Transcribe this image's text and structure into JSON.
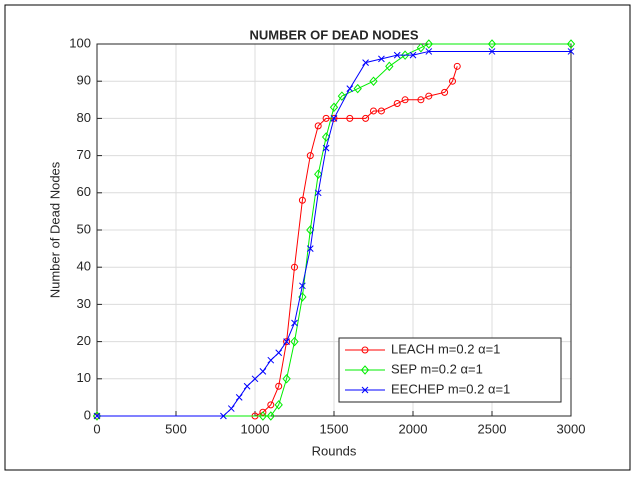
{
  "chart_data": {
    "type": "line",
    "title": "NUMBER OF DEAD NODES",
    "x_label": "Rounds",
    "y_label": "Number of Dead Nodes",
    "xlim": [
      0,
      3000
    ],
    "xticks": [
      0,
      500,
      1000,
      1500,
      2000,
      2500,
      3000
    ],
    "ylim": [
      0,
      100
    ],
    "yticks": [
      0,
      10,
      20,
      30,
      40,
      50,
      60,
      70,
      80,
      90,
      100
    ],
    "grid": true,
    "legend": "lower right",
    "series": [
      {
        "name": "LEACH m=0.2 α=1",
        "color": "#ff0000",
        "marker": "circle",
        "x": [
          0,
          1000,
          1050,
          1100,
          1150,
          1200,
          1250,
          1300,
          1350,
          1400,
          1450,
          1500,
          1600,
          1700,
          1750,
          1800,
          1900,
          1950,
          2050,
          2100,
          2200,
          2250,
          2280
        ],
        "values": [
          0,
          0,
          1,
          3,
          8,
          20,
          40,
          58,
          70,
          78,
          80,
          80,
          80,
          80,
          82,
          82,
          84,
          85,
          85,
          86,
          87,
          90,
          94
        ]
      },
      {
        "name": "SEP m=0.2 α=1",
        "color": "#00ee00",
        "marker": "diamond",
        "x": [
          0,
          1050,
          1100,
          1150,
          1200,
          1250,
          1300,
          1350,
          1400,
          1450,
          1500,
          1550,
          1650,
          1750,
          1850,
          1950,
          2050,
          2100,
          2500,
          3000
        ],
        "values": [
          0,
          0,
          0,
          3,
          10,
          20,
          32,
          50,
          65,
          75,
          83,
          86,
          88,
          90,
          94,
          97,
          99,
          100,
          100,
          100
        ]
      },
      {
        "name": "EECHEP m=0.2 α=1",
        "color": "#0000ff",
        "marker": "x",
        "x": [
          0,
          800,
          850,
          900,
          950,
          1000,
          1050,
          1100,
          1150,
          1200,
          1250,
          1300,
          1350,
          1400,
          1450,
          1500,
          1600,
          1700,
          1800,
          1900,
          2000,
          2100,
          2500,
          3000
        ],
        "values": [
          0,
          0,
          2,
          5,
          8,
          10,
          12,
          15,
          17,
          20,
          25,
          35,
          45,
          60,
          72,
          80,
          88,
          95,
          96,
          97,
          97,
          98,
          98,
          98
        ]
      }
    ]
  }
}
